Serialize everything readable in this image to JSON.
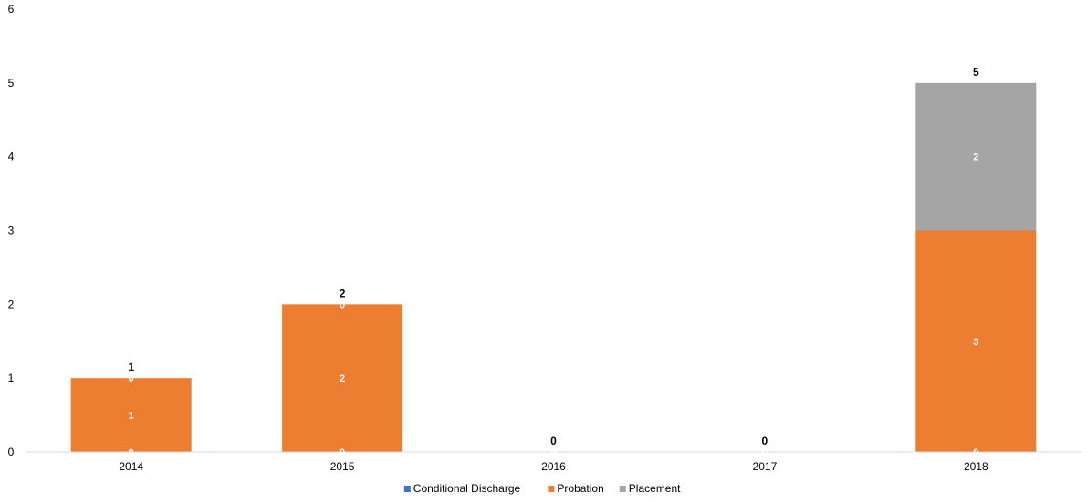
{
  "chart_data": {
    "type": "bar",
    "stacked": true,
    "categories": [
      "2014",
      "2015",
      "2016",
      "2017",
      "2018"
    ],
    "series": [
      {
        "name": "Conditional Discharge",
        "color": "#4472c4",
        "values": [
          0,
          0,
          0,
          0,
          0
        ]
      },
      {
        "name": "Probation",
        "color": "#ed7d31",
        "values": [
          1,
          2,
          0,
          0,
          3
        ]
      },
      {
        "name": "Placement",
        "color": "#a5a5a5",
        "values": [
          0,
          0,
          0,
          0,
          2
        ]
      }
    ],
    "totals": [
      1,
      2,
      0,
      0,
      5
    ],
    "ylim": [
      0,
      6
    ],
    "yticks": [
      0,
      1,
      2,
      3,
      4,
      5,
      6
    ],
    "gridlines": false,
    "legend_position": "bottom",
    "title": "",
    "xlabel": "",
    "ylabel": ""
  }
}
